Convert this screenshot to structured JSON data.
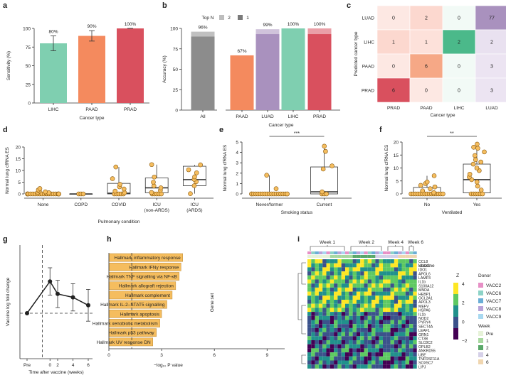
{
  "panel_letters": [
    "a",
    "b",
    "c",
    "d",
    "e",
    "f",
    "g",
    "h",
    "i"
  ],
  "chart_data": [
    {
      "panel": "a",
      "type": "bar",
      "categories": [
        "LIHC",
        "PAAD",
        "PRAD"
      ],
      "values": [
        80,
        90,
        100
      ],
      "value_labels": [
        "80%",
        "90%",
        "100%"
      ],
      "error_high": [
        90,
        97,
        100
      ],
      "error_low": [
        70,
        83,
        100
      ],
      "colors": [
        "#7fcfb0",
        "#f48a5e",
        "#d9505e"
      ],
      "xlabel": "Cancer type",
      "ylabel": "Sensitivity (%)",
      "ylim": [
        0,
        100
      ],
      "yticks": [
        "0",
        "25",
        "50",
        "75",
        "100"
      ]
    },
    {
      "panel": "b",
      "type": "bar",
      "legend_title": "Top N",
      "legend": [
        "2",
        "1"
      ],
      "categories": [
        "All",
        "PAAD",
        "LUAD",
        "LIHC",
        "PRAD"
      ],
      "top1": [
        90,
        67,
        93,
        100,
        93
      ],
      "top2": [
        96,
        67,
        99,
        100,
        100
      ],
      "value_labels": [
        "96%",
        "67%",
        "99%",
        "100%",
        "100%"
      ],
      "colors": [
        "#8c8c8c",
        "#f48a5e",
        "#a991be",
        "#7fcfb0",
        "#d9505e"
      ],
      "xlabel": "Cancer type",
      "ylabel": "Accuracy (%)",
      "ylim": [
        0,
        100
      ],
      "yticks": [
        "0",
        "25",
        "50",
        "75",
        "100"
      ]
    },
    {
      "panel": "c",
      "type": "heatmap",
      "rows": [
        "LUAD",
        "LIHC",
        "PAAD",
        "PRAD"
      ],
      "cols": [
        "PRAD",
        "PAAD",
        "LIHC",
        "LUAD"
      ],
      "values": [
        [
          0,
          2,
          0,
          77
        ],
        [
          1,
          1,
          2,
          2
        ],
        [
          0,
          6,
          0,
          3
        ],
        [
          6,
          0,
          0,
          3
        ]
      ],
      "cell_colors": [
        [
          "#fde8e3",
          "#fcd8cf",
          "#f2faf6",
          "#a991be"
        ],
        [
          "#fcd8cf",
          "#fde1da",
          "#4bb98a",
          "#e9e1f0"
        ],
        [
          "#fde8e3",
          "#f6a886",
          "#f2faf6",
          "#ece4f2"
        ],
        [
          "#d9505e",
          "#fde8e3",
          "#f2faf6",
          "#ece4f2"
        ]
      ],
      "xlabel": "Cancer type",
      "ylabel": "Predicted cancer type"
    },
    {
      "panel": "d",
      "type": "scatter",
      "categories": [
        "None",
        "COPD",
        "COVID",
        "ICU\n(non-ARDS)",
        "ICU\n(ARDS)"
      ],
      "points": [
        [
          0,
          0,
          0,
          0,
          0,
          0,
          0,
          0,
          0,
          0,
          0,
          0,
          0,
          0,
          0,
          0,
          0,
          0,
          0,
          0,
          0.4,
          0.5,
          0.6,
          0.9,
          1.2,
          1.7,
          2.3
        ],
        [
          0,
          0,
          0
        ],
        [
          0,
          0,
          0,
          0,
          0,
          0.5,
          1.2,
          2.1,
          3.0,
          4.1,
          6.5,
          11.5
        ],
        [
          0,
          0,
          0,
          0,
          0,
          0.6,
          1.5,
          2.6,
          3.4,
          5.0,
          7.2,
          12.5
        ],
        [
          0.1,
          3.5,
          5.2,
          6.2,
          7.3,
          9.0,
          10.3,
          12.4
        ]
      ],
      "boxes": [
        [
          0,
          0,
          0,
          0,
          0
        ],
        [
          0,
          0,
          0,
          0,
          0
        ],
        [
          0,
          0,
          0.3,
          4.5,
          11.5
        ],
        [
          0,
          0.5,
          2.6,
          6.8,
          12.5
        ],
        [
          0.1,
          3.5,
          6.1,
          11.8,
          12.4
        ]
      ],
      "xlabel": "Pulmonary condition",
      "ylabel": "Normal lung cfRNA ES",
      "ylim": [
        0,
        20
      ],
      "yticks": [
        "0",
        "5",
        "10",
        "15",
        "20"
      ]
    },
    {
      "panel": "e",
      "type": "scatter",
      "categories": [
        "Never/former",
        "Current"
      ],
      "points": [
        [
          0,
          0,
          0,
          0,
          0,
          0,
          0,
          0,
          0,
          0,
          0,
          0,
          0,
          0,
          0,
          0,
          0,
          0,
          0,
          0.5,
          1.8
        ],
        [
          0,
          0,
          0,
          0.2,
          2.4,
          2.7,
          4.1,
          4.6
        ]
      ],
      "boxes": [
        [
          0,
          0,
          0,
          0,
          1.8
        ],
        [
          0,
          0,
          0.2,
          2.6,
          4.6
        ]
      ],
      "significance": "***",
      "xlabel": "Smoking status",
      "ylabel": "Normal lung cfRNA ES",
      "ylim": [
        0,
        5
      ],
      "yticks": [
        "0",
        "1",
        "2",
        "3",
        "4",
        "5"
      ]
    },
    {
      "panel": "f",
      "type": "scatter",
      "categories": [
        "No",
        "Yes"
      ],
      "points": [
        [
          0,
          0,
          0,
          0,
          0,
          0,
          0,
          0,
          0,
          0,
          0,
          0,
          0,
          0,
          0,
          0.5,
          1.2,
          2.0,
          2.7,
          3.3,
          4.0,
          4.6,
          7.0
        ],
        [
          0,
          0,
          0,
          0,
          0,
          0,
          1.5,
          3.0,
          4.6,
          5.5,
          6.5,
          7.6,
          9.0,
          10.0,
          11.5,
          12.3,
          13.2,
          14.8,
          16.2,
          17.6,
          18.0,
          19.2
        ]
      ],
      "boxes": [
        [
          0,
          0,
          0,
          2.5,
          7.0
        ],
        [
          0,
          0.4,
          5.5,
          11.5,
          19.2
        ]
      ],
      "significance": "**",
      "xlabel": "Ventilated",
      "ylabel": "Normal lung cfRNA ES",
      "ylim": [
        0,
        20
      ],
      "yticks": [
        "0",
        "5",
        "10",
        "15",
        "20"
      ]
    },
    {
      "panel": "g",
      "type": "line",
      "x": [
        "Pre",
        "0",
        "2",
        "4",
        "6"
      ],
      "x_numeric": [
        -2,
        1,
        2,
        4,
        6
      ],
      "y": [
        0,
        14,
        8.5,
        7,
        3.5
      ],
      "y_err": [
        0,
        6,
        6,
        6,
        7
      ],
      "xticks": [
        "Pre",
        "0",
        "2",
        "4",
        "6"
      ],
      "xlabel": "Time after vaccine (weeks)",
      "ylabel": "Vaccine log fold change",
      "ylim": [
        -20,
        30
      ]
    },
    {
      "panel": "h",
      "type": "bar",
      "orientation": "horizontal",
      "categories": [
        "Hallmark inflammatory response",
        "Hallmark IFNγ response",
        "Hallmark TNF signalling via NF-κB",
        "Hallmark allograft rejection",
        "Hallmark complement",
        "Hallmark IL-2–STAT5 signalling",
        "Hallmark apoptosis",
        "Hallmark xenobiotic metabolism",
        "Hallmark p53 pathway",
        "Hallmark UV response DN"
      ],
      "values": [
        4.2,
        4.1,
        4.0,
        3.8,
        3.6,
        3.3,
        3.0,
        2.9,
        2.7,
        2.5
      ],
      "color": "#f5bd5e",
      "threshold": 1.3,
      "xlabel": "−log₁₀ P value",
      "ylabel": "Gene set",
      "xticks": [
        "0",
        "3",
        "6",
        "9"
      ],
      "xlim": [
        0,
        10
      ]
    },
    {
      "panel": "i",
      "type": "heatmap",
      "weeks": [
        "Week 1",
        "Week 2",
        "Week 4",
        "Week 6"
      ],
      "genes": [
        "CCL8",
        "HLSX1",
        "IDO1",
        "APOL6",
        "LAMP3",
        "IL1b",
        "S100A12",
        "MNDA",
        "HEBP1",
        "GCL2A1",
        "APOL3",
        "MEFV",
        "HSPA6",
        "IL1b",
        "NOD2",
        "PYRY4",
        "SECT4A",
        "LEAF1",
        "GRN1",
        "CT3B",
        "SLC8C2",
        "OPLB2",
        "ANKRD55",
        "UBE",
        "TNFRSF11A",
        "SOX5C7",
        "LIPJ"
      ],
      "legend_title_z": "Z",
      "legend_z_ticks": [
        "4",
        "2",
        "0",
        "−2"
      ],
      "legend_donor_title": "Donor",
      "donors": [
        {
          "label": "VACC2",
          "color": "#e790c6"
        },
        {
          "label": "VACC6",
          "color": "#8dd3c7"
        },
        {
          "label": "VACC7",
          "color": "#6baed6"
        },
        {
          "label": "VACC8",
          "color": "#b8a3d9"
        },
        {
          "label": "VACC9",
          "color": "#a8d8f0"
        }
      ],
      "vaccine_label": "Vaccine",
      "legend_week_title": "Week",
      "week_levels": [
        {
          "label": "Pre",
          "color": "#e6f2d8"
        },
        {
          "label": "1",
          "color": "#a8d8a0"
        },
        {
          "label": "2",
          "color": "#5aa869"
        },
        {
          "label": "4",
          "color": "#d5d0e8"
        },
        {
          "label": "6",
          "color": "#f0d6b0"
        }
      ]
    }
  ]
}
